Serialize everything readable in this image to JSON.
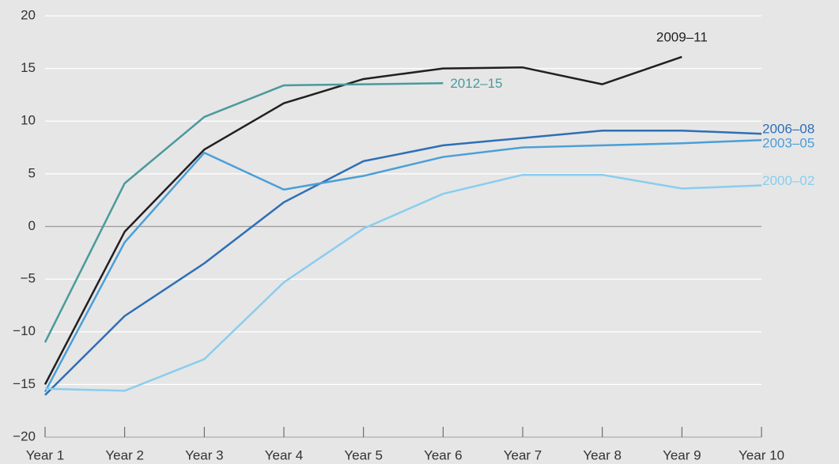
{
  "chart_data": {
    "type": "line",
    "categories": [
      "Year 1",
      "Year 2",
      "Year 3",
      "Year 4",
      "Year 5",
      "Year 6",
      "Year 7",
      "Year 8",
      "Year 9",
      "Year 10"
    ],
    "series": [
      {
        "name": "2009–11",
        "color": "#231f20",
        "values": [
          -15,
          -0.5,
          7.3,
          11.7,
          14,
          15,
          15.1,
          13.5,
          16.1,
          null
        ]
      },
      {
        "name": "2012–15",
        "color": "#4a9a9c",
        "values": [
          -11,
          4.1,
          10.4,
          13.4,
          13.5,
          13.6,
          null,
          null,
          null,
          null
        ]
      },
      {
        "name": "2006–08",
        "color": "#2e6fb5",
        "values": [
          -16,
          -8.5,
          -3.5,
          2.3,
          6.2,
          7.7,
          8.4,
          9.1,
          9.1,
          8.8
        ]
      },
      {
        "name": "2003–05",
        "color": "#4a9fd8",
        "values": [
          -15.7,
          -1.5,
          7,
          3.5,
          4.8,
          6.6,
          7.5,
          7.7,
          7.9,
          8.2
        ]
      },
      {
        "name": "2000–02",
        "color": "#8acdee",
        "values": [
          -15.4,
          -15.6,
          -12.6,
          -5.3,
          -0.2,
          3.1,
          4.9,
          4.9,
          3.6,
          3.9
        ]
      }
    ],
    "ylim": [
      -20,
      20
    ],
    "yticks": [
      {
        "value": -20,
        "label": "−20"
      },
      {
        "value": -15,
        "label": "−15"
      },
      {
        "value": -10,
        "label": "−10"
      },
      {
        "value": -5,
        "label": "−5"
      },
      0,
      5,
      10,
      15,
      20
    ],
    "grid": true
  }
}
